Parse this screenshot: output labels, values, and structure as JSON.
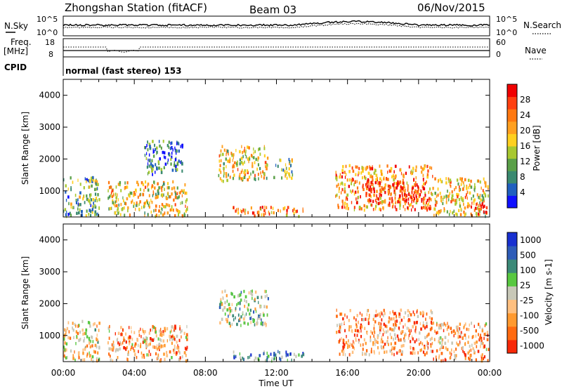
{
  "header": {
    "station": "Zhongshan Station (fitACF)",
    "beam": "Beam 03",
    "date": "06/Nov/2015"
  },
  "top_panel": {
    "left_label_1": "N.Sky",
    "left_label_2": "Freq.",
    "left_label_2b": "[MHz]",
    "left_label_3": "CPID",
    "right_label_1": "N.Search",
    "right_label_2": "Nave",
    "noise_ticks": [
      "10^5",
      "10^0"
    ],
    "noise_right_ticks": [
      "10^5",
      "10^0"
    ],
    "freq_ticks": [
      "18",
      "8"
    ],
    "nave_ticks": [
      "60",
      "0"
    ],
    "cpid_text": "normal (fast stereo) 153"
  },
  "time_axis": {
    "label": "Time UT",
    "ticks": [
      "00:00",
      "04:00",
      "08:00",
      "12:00",
      "16:00",
      "20:00",
      "00:00"
    ]
  },
  "chart_data": [
    {
      "type": "heatmap",
      "name": "power-panel",
      "ylabel": "Slant Range [km]",
      "xlabel": "",
      "ylim": [
        180,
        4500
      ],
      "xlim_hours": [
        0,
        24
      ],
      "y_ticks": [
        "1000",
        "2000",
        "3000",
        "4000"
      ],
      "colorbar": {
        "label": "Power [dB]",
        "ticks": [
          "4",
          "8",
          "12",
          "16",
          "20",
          "24",
          "28"
        ],
        "colors": [
          "#1010ff",
          "#2060c0",
          "#3a8a70",
          "#5aa048",
          "#a8c830",
          "#ffd020",
          "#ffa020",
          "#ff7810",
          "#ff4010",
          "#f00000"
        ]
      },
      "echo_regions": [
        {
          "t0": 0.0,
          "t1": 2.0,
          "r0": 200,
          "r1": 1450,
          "level": 0.35
        },
        {
          "t0": 2.5,
          "t1": 7.0,
          "r0": 200,
          "r1": 1300,
          "level": 0.55
        },
        {
          "t0": 4.5,
          "t1": 6.7,
          "r0": 1500,
          "r1": 2600,
          "level": 0.2
        },
        {
          "t0": 8.7,
          "t1": 11.5,
          "r0": 1300,
          "r1": 2400,
          "level": 0.55
        },
        {
          "t0": 9.5,
          "t1": 13.5,
          "r0": 200,
          "r1": 500,
          "level": 0.75
        },
        {
          "t0": 11.8,
          "t1": 12.9,
          "r0": 1400,
          "r1": 2000,
          "level": 0.4
        },
        {
          "t0": 15.3,
          "t1": 20.8,
          "r0": 400,
          "r1": 1800,
          "level": 0.7
        },
        {
          "t0": 17.0,
          "t1": 20.5,
          "r0": 600,
          "r1": 1300,
          "level": 0.9
        },
        {
          "t0": 20.8,
          "t1": 23.9,
          "r0": 200,
          "r1": 1400,
          "level": 0.55
        },
        {
          "t0": 22.5,
          "t1": 23.8,
          "r0": 250,
          "r1": 600,
          "level": 0.9
        }
      ]
    },
    {
      "type": "heatmap",
      "name": "velocity-panel",
      "ylabel": "Slant Range [km]",
      "xlabel": "Time UT",
      "ylim": [
        180,
        4500
      ],
      "xlim_hours": [
        0,
        24
      ],
      "y_ticks": [
        "1000",
        "2000",
        "3000",
        "4000"
      ],
      "colorbar": {
        "label": "Velocity [m s-1]",
        "ticks": [
          "1000",
          "500",
          "100",
          "25",
          "-25",
          "-100",
          "-500",
          "-1000"
        ],
        "colors": [
          "#1830d0",
          "#2e5cb8",
          "#3c8a78",
          "#58c840",
          "#c8c8b8",
          "#ffc080",
          "#ff9a30",
          "#ff6a10",
          "#f82808"
        ]
      },
      "echo_regions": [
        {
          "t0": 0.0,
          "t1": 2.0,
          "r0": 200,
          "r1": 1450,
          "level": 0.6
        },
        {
          "t0": 2.5,
          "t1": 7.0,
          "r0": 200,
          "r1": 1300,
          "level": 0.7
        },
        {
          "t0": 8.7,
          "t1": 11.5,
          "r0": 1300,
          "r1": 2400,
          "level": 0.45
        },
        {
          "t0": 9.5,
          "t1": 13.5,
          "r0": 200,
          "r1": 500,
          "level": 0.3
        },
        {
          "t0": 15.3,
          "t1": 20.8,
          "r0": 400,
          "r1": 1800,
          "level": 0.75
        },
        {
          "t0": 20.8,
          "t1": 23.9,
          "r0": 200,
          "r1": 1400,
          "level": 0.7
        }
      ]
    }
  ]
}
